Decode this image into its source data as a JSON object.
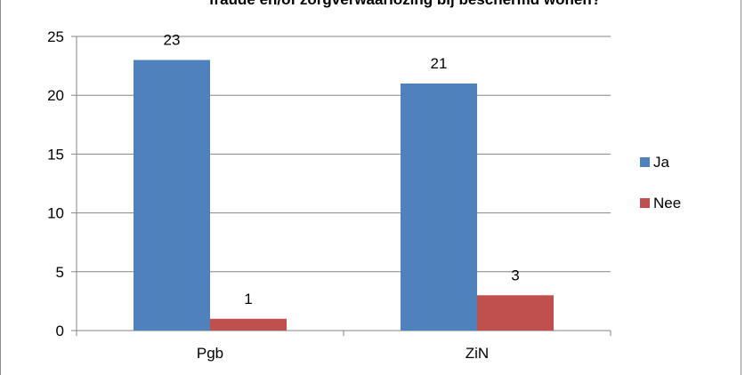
{
  "chart_data": {
    "type": "bar",
    "title": "fraude en/of zorgverwaarlozing bij beschermd wonen?",
    "categories": [
      "Pgb",
      "ZiN"
    ],
    "series": [
      {
        "name": "Ja",
        "values": [
          23,
          21
        ],
        "color": "#4f81bd"
      },
      {
        "name": "Nee",
        "values": [
          1,
          3
        ],
        "color": "#c0504d"
      }
    ],
    "ylim": [
      0,
      25
    ],
    "yticks": [
      0,
      5,
      10,
      15,
      20,
      25
    ],
    "grid": true,
    "legend": "right",
    "xlabel": "",
    "ylabel": ""
  }
}
